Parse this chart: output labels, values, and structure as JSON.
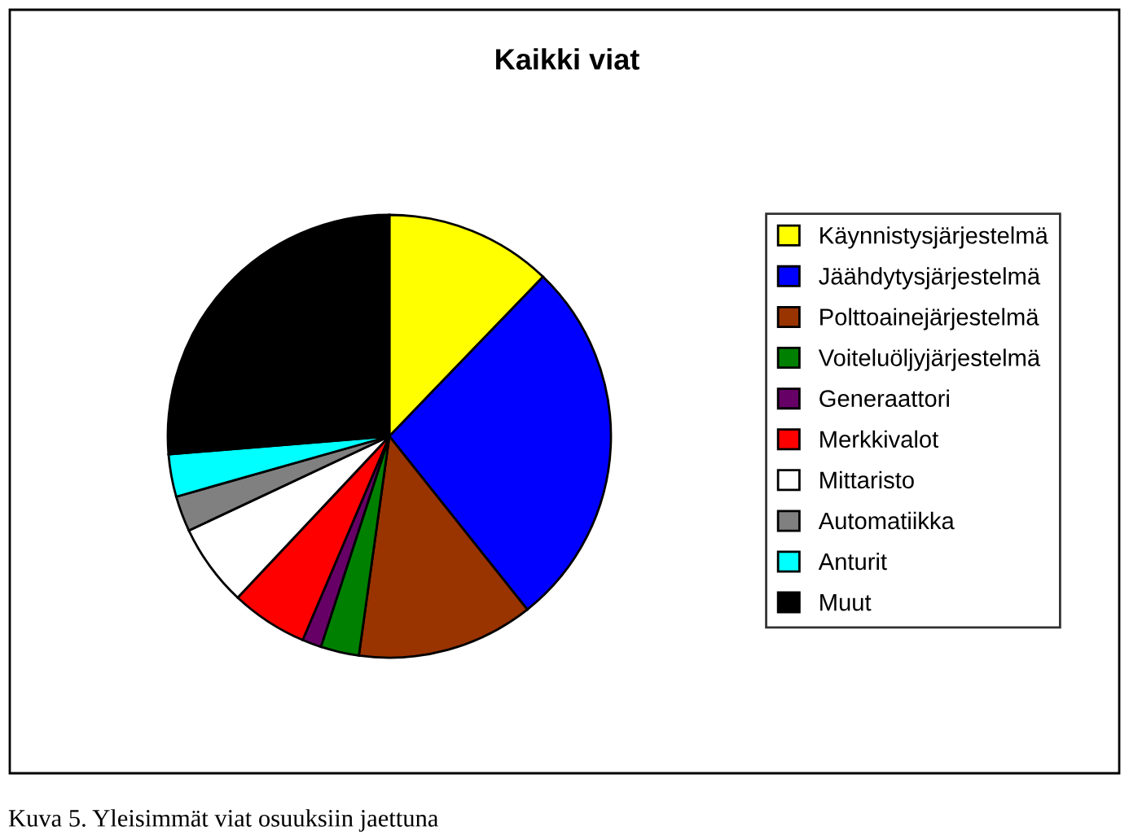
{
  "chart_data": {
    "type": "pie",
    "title": "Kaikki viat",
    "categories": [
      "Käynnistysjärjestelmä",
      "Jäähdytysjärjestelmä",
      "Polttoainejärjestelmä",
      "Voiteluöljyjärjestelmä",
      "Generaattori",
      "Merkkivalot",
      "Mittaristo",
      "Automatiikka",
      "Anturit",
      "Muut"
    ],
    "values": [
      12.2,
      27.1,
      12.9,
      2.8,
      1.4,
      5.6,
      6.0,
      2.6,
      3.1,
      26.3
    ],
    "colors": [
      "#ffff00",
      "#0000ff",
      "#993300",
      "#008000",
      "#660066",
      "#ff0000",
      "#ffffff",
      "#808080",
      "#00ffff",
      "#000000"
    ],
    "legend": "right",
    "annotations": [
      "Kuva 5. Yleisimmät viat osuuksiin jaettuna"
    ]
  }
}
